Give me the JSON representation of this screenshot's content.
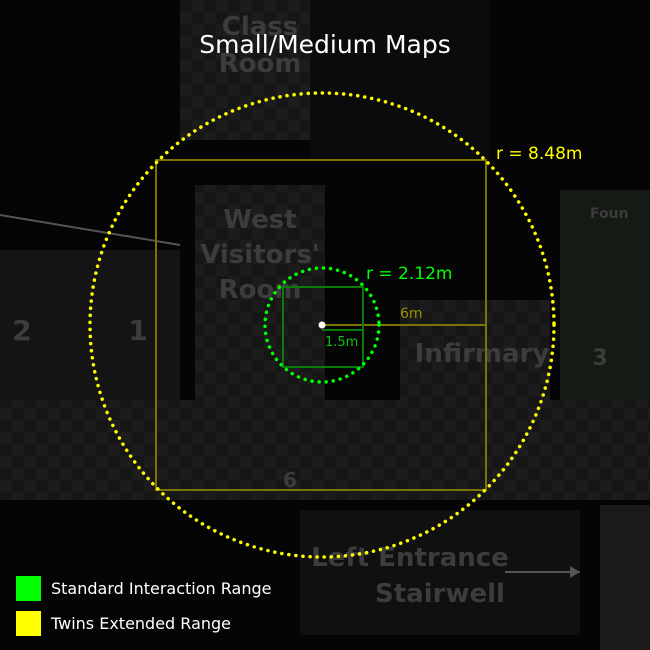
{
  "title": "Small/Medium Maps",
  "map": {
    "rooms": {
      "class_room_line1": "Class",
      "class_room_line2": "Room",
      "west_visitors_line1": "West",
      "west_visitors_line2": "Visitors'",
      "west_visitors_line3": "Room",
      "infirmary": "Infirmary",
      "left_entrance_line1": "Left Entrance",
      "left_entrance_line2": "Stairwell",
      "fountain": "Foun"
    },
    "numbers": {
      "n1": "1",
      "n2": "2",
      "n3": "3",
      "n6": "6"
    }
  },
  "ranges": {
    "standard": {
      "radius_label": "r = 2.12m",
      "half_side_label": "1.5m",
      "color": "#00ff00"
    },
    "extended": {
      "radius_label": "r = 8.48m",
      "half_side_label": "6m",
      "color": "#ffff00"
    }
  },
  "legend": {
    "standard_label": "Standard Interaction Range",
    "extended_label": "Twins Extended Range",
    "standard_color": "#00ff00",
    "extended_color": "#ffff00"
  }
}
